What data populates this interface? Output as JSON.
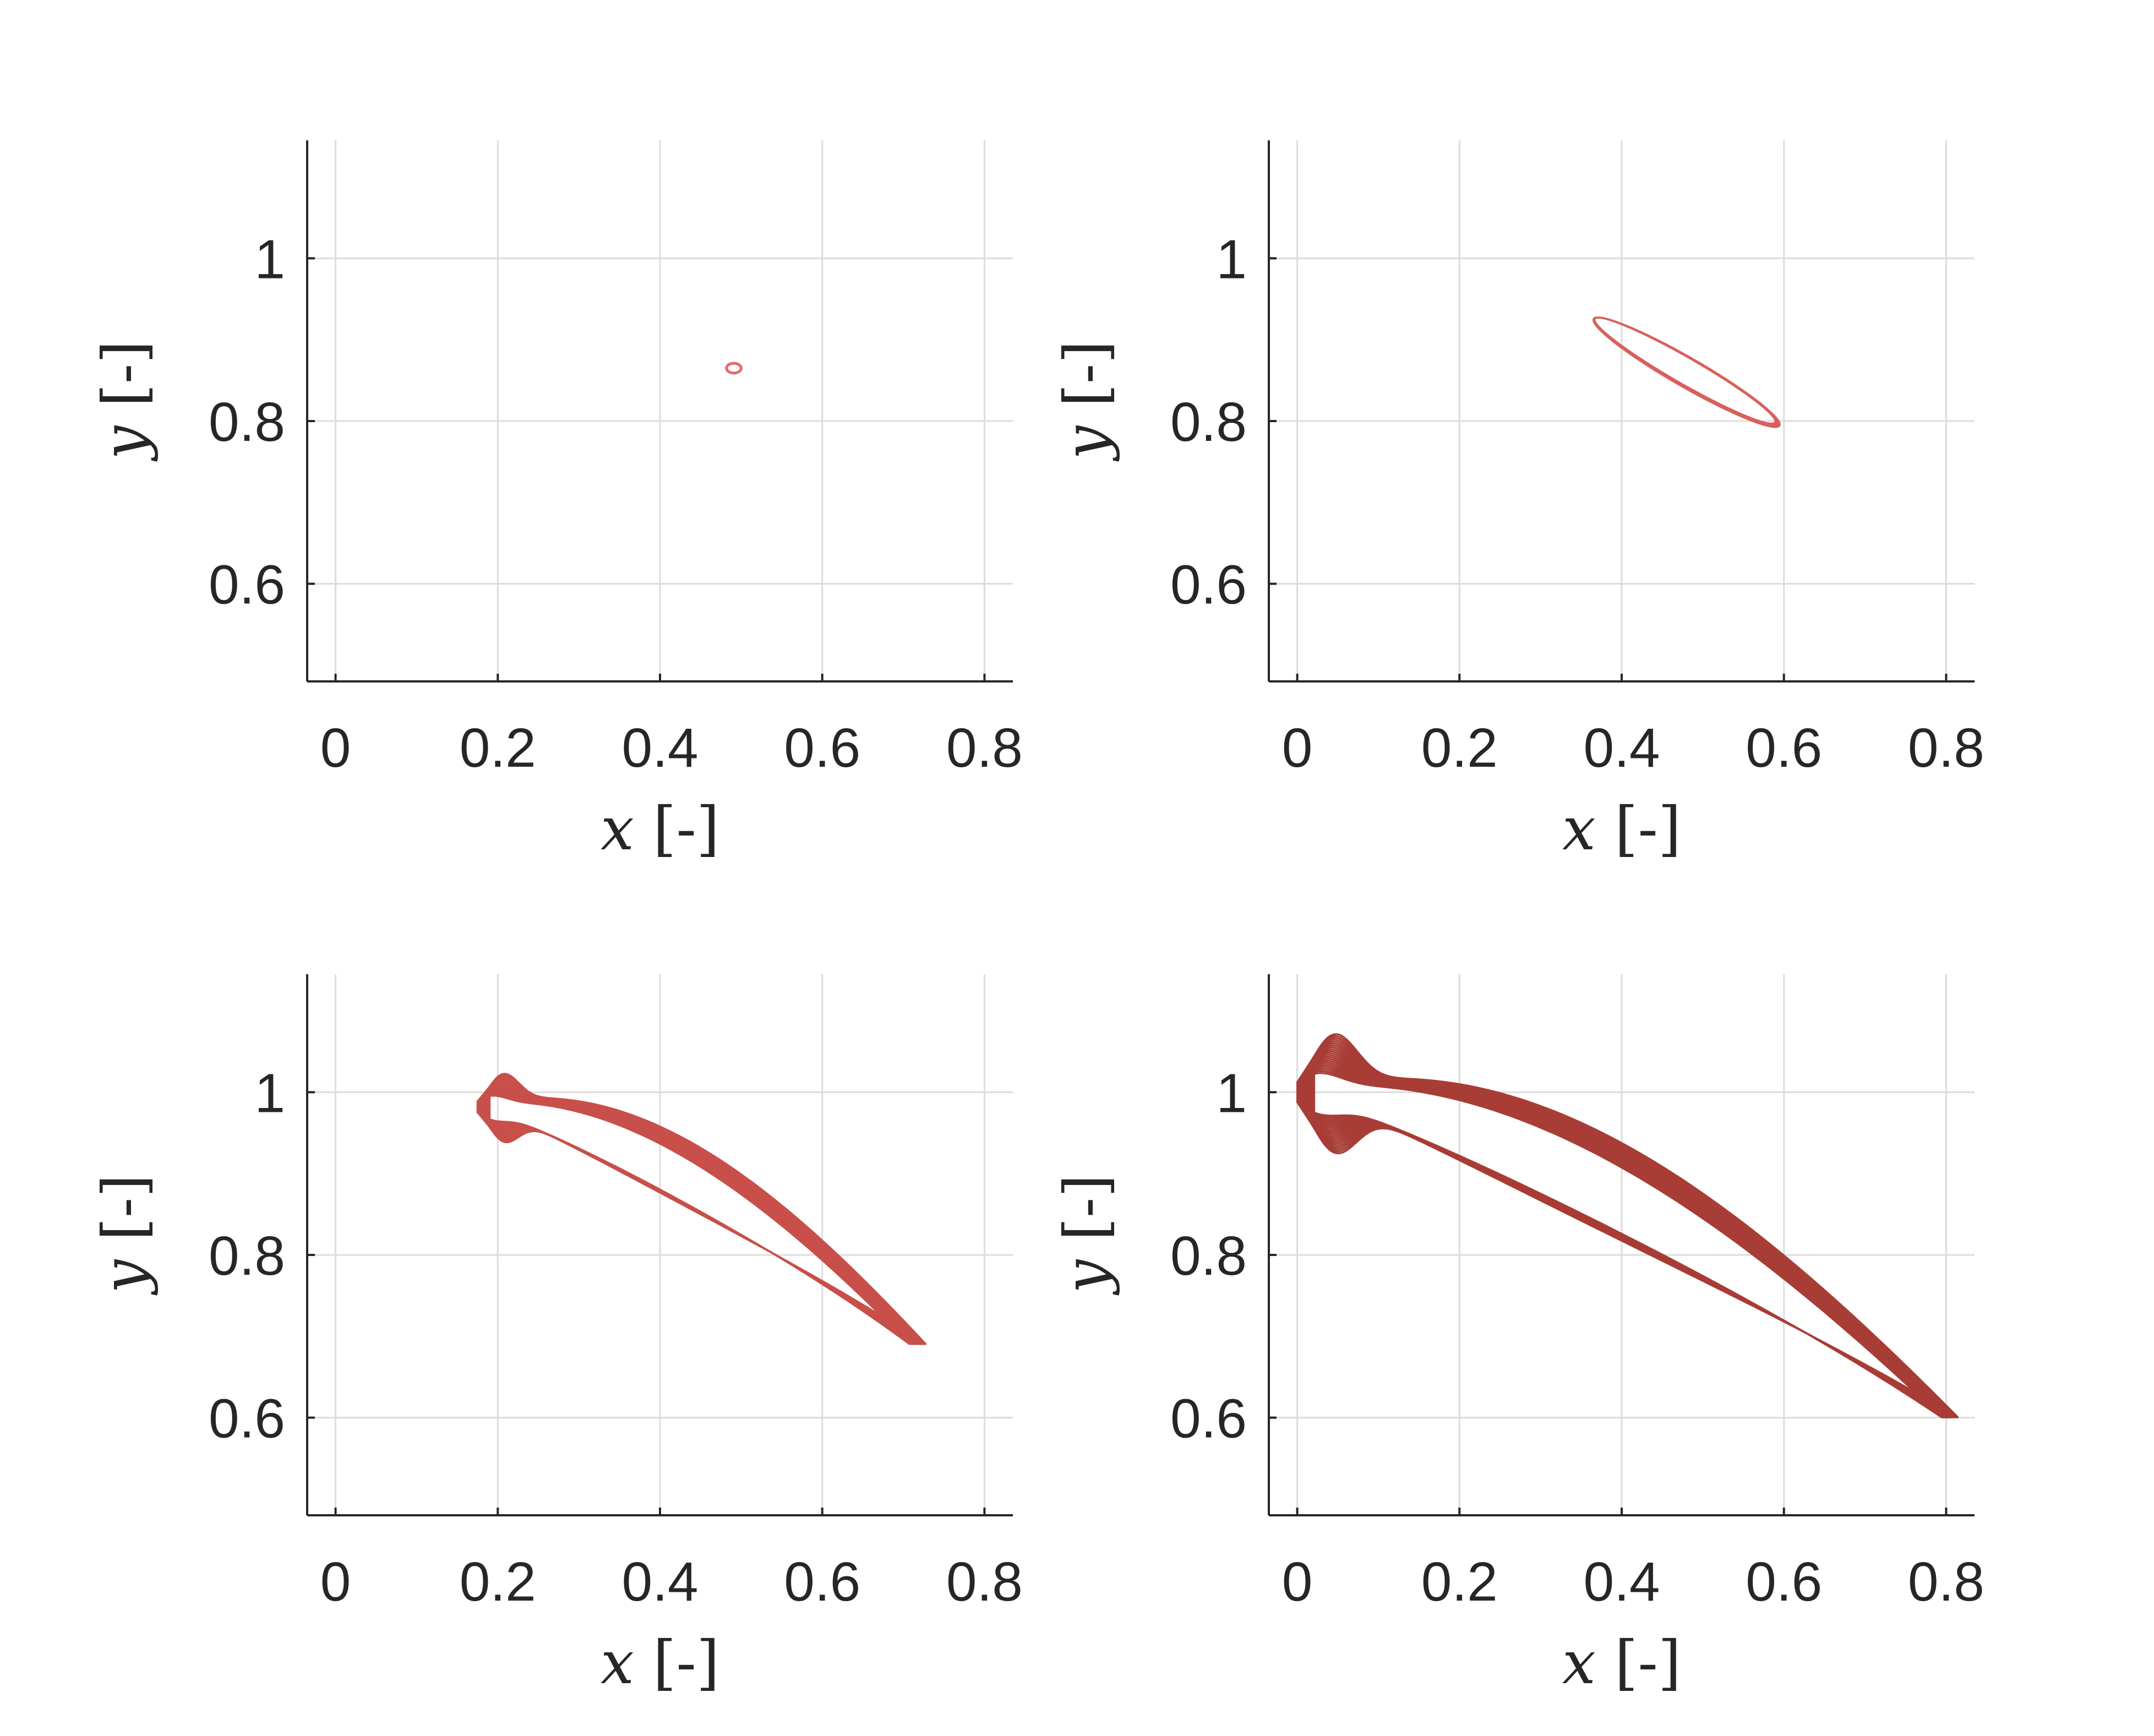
{
  "chart_data": [
    {
      "type": "line",
      "panel": "top-left",
      "xlabel": {
        "var": "x",
        "unit": "[-]"
      },
      "ylabel": {
        "var": "y",
        "unit": "[-]"
      },
      "xlim": [
        -0.035,
        0.835
      ],
      "ylim": [
        0.48,
        1.145
      ],
      "xticks": [
        0,
        0.2,
        0.4,
        0.6,
        0.8
      ],
      "xtick_labels": [
        "0",
        "0.2",
        "0.4",
        "0.6",
        "0.8"
      ],
      "yticks": [
        0.6,
        0.8,
        1.0
      ],
      "ytick_labels": [
        "0.6",
        "0.8",
        "1"
      ],
      "grid": true,
      "color": "#e46a6a",
      "series": [
        {
          "loops": 1,
          "x_range": [
            0.482,
            0.5
          ],
          "y_range": [
            0.858,
            0.872
          ]
        }
      ]
    },
    {
      "type": "line",
      "panel": "top-right",
      "xlabel": {
        "var": "x",
        "unit": "[-]"
      },
      "ylabel": {
        "var": "y",
        "unit": "[-]"
      },
      "xlim": [
        -0.035,
        0.835
      ],
      "ylim": [
        0.48,
        1.145
      ],
      "xticks": [
        0,
        0.2,
        0.4,
        0.6,
        0.8
      ],
      "xtick_labels": [
        "0",
        "0.2",
        "0.4",
        "0.6",
        "0.8"
      ],
      "yticks": [
        0.6,
        0.8,
        1.0
      ],
      "ytick_labels": [
        "0.6",
        "0.8",
        "1"
      ],
      "grid": true,
      "color": "#d8615d",
      "series": [
        {
          "loops": 12,
          "x_range": [
            0.345,
            0.612
          ],
          "y_range": [
            0.785,
            0.94
          ]
        }
      ]
    },
    {
      "type": "line",
      "panel": "bottom-left",
      "xlabel": {
        "var": "x",
        "unit": "[-]"
      },
      "ylabel": {
        "var": "y",
        "unit": "[-]"
      },
      "xlim": [
        -0.035,
        0.835
      ],
      "ylim": [
        0.48,
        1.145
      ],
      "xticks": [
        0,
        0.2,
        0.4,
        0.6,
        0.8
      ],
      "xtick_labels": [
        "0",
        "0.2",
        "0.4",
        "0.6",
        "0.8"
      ],
      "yticks": [
        0.6,
        0.8,
        1.0
      ],
      "ytick_labels": [
        "0.6",
        "0.8",
        "1"
      ],
      "grid": true,
      "color": "#c84f4a",
      "series": [
        {
          "loops": 16,
          "x_range": [
            0.16,
            0.735
          ],
          "y_range": [
            0.675,
            1.005
          ]
        }
      ]
    },
    {
      "type": "line",
      "panel": "bottom-right",
      "xlabel": {
        "var": "x",
        "unit": "[-]"
      },
      "ylabel": {
        "var": "y",
        "unit": "[-]"
      },
      "xlim": [
        -0.035,
        0.835
      ],
      "ylim": [
        0.48,
        1.145
      ],
      "xticks": [
        0,
        0.2,
        0.4,
        0.6,
        0.8
      ],
      "xtick_labels": [
        "0",
        "0.2",
        "0.4",
        "0.6",
        "0.8"
      ],
      "yticks": [
        0.6,
        0.8,
        1.0
      ],
      "ytick_labels": [
        "0.6",
        "0.8",
        "1"
      ],
      "grid": true,
      "color": "#a83d36",
      "series": [
        {
          "loops": 22,
          "x_range": [
            -0.035,
            0.83
          ],
          "y_range": [
            0.58,
            1.05
          ]
        }
      ]
    }
  ]
}
